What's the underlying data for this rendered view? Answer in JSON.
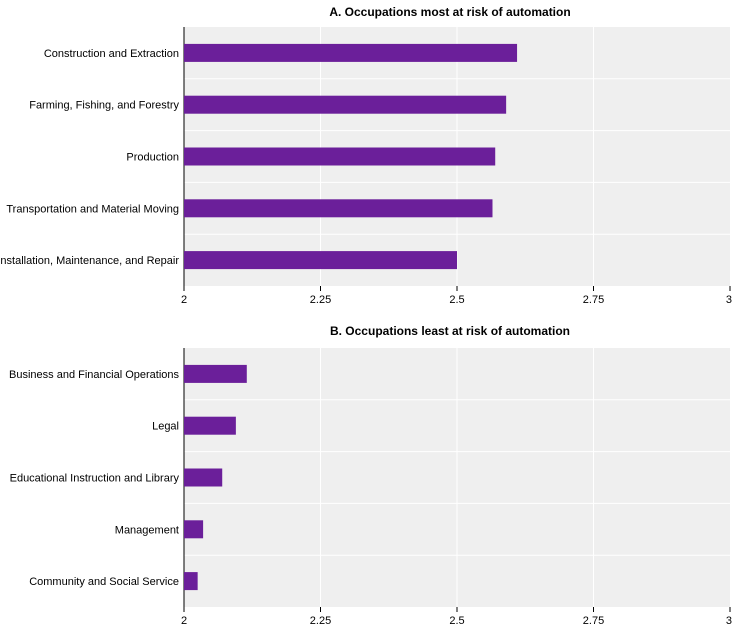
{
  "chart_data": [
    {
      "type": "bar",
      "orientation": "horizontal",
      "title": "A. Occupations most at risk of automation",
      "categories": [
        "Construction and Extraction",
        "Farming, Fishing, and Forestry",
        "Production",
        "Transportation and Material Moving",
        "Installation, Maintenance, and Repair"
      ],
      "values": [
        2.61,
        2.59,
        2.57,
        2.565,
        2.5
      ],
      "xlim": [
        2,
        3
      ],
      "xticks": [
        "2",
        "2.25",
        "2.5",
        "2.75",
        "3"
      ],
      "xtick_values": [
        2,
        2.25,
        2.5,
        2.75,
        3
      ],
      "bar_color": "#6b1f9a",
      "grid": true
    },
    {
      "type": "bar",
      "orientation": "horizontal",
      "title": "B. Occupations least at risk of automation",
      "categories": [
        "Business and Financial Operations",
        "Legal",
        "Educational Instruction and Library",
        "Management",
        "Community and Social Service"
      ],
      "values": [
        2.115,
        2.095,
        2.07,
        2.035,
        2.025
      ],
      "xlim": [
        2,
        3
      ],
      "xticks": [
        "2",
        "2.25",
        "2.5",
        "2.75",
        "3"
      ],
      "xtick_values": [
        2,
        2.25,
        2.5,
        2.75,
        3
      ],
      "bar_color": "#6b1f9a",
      "grid": true
    }
  ]
}
